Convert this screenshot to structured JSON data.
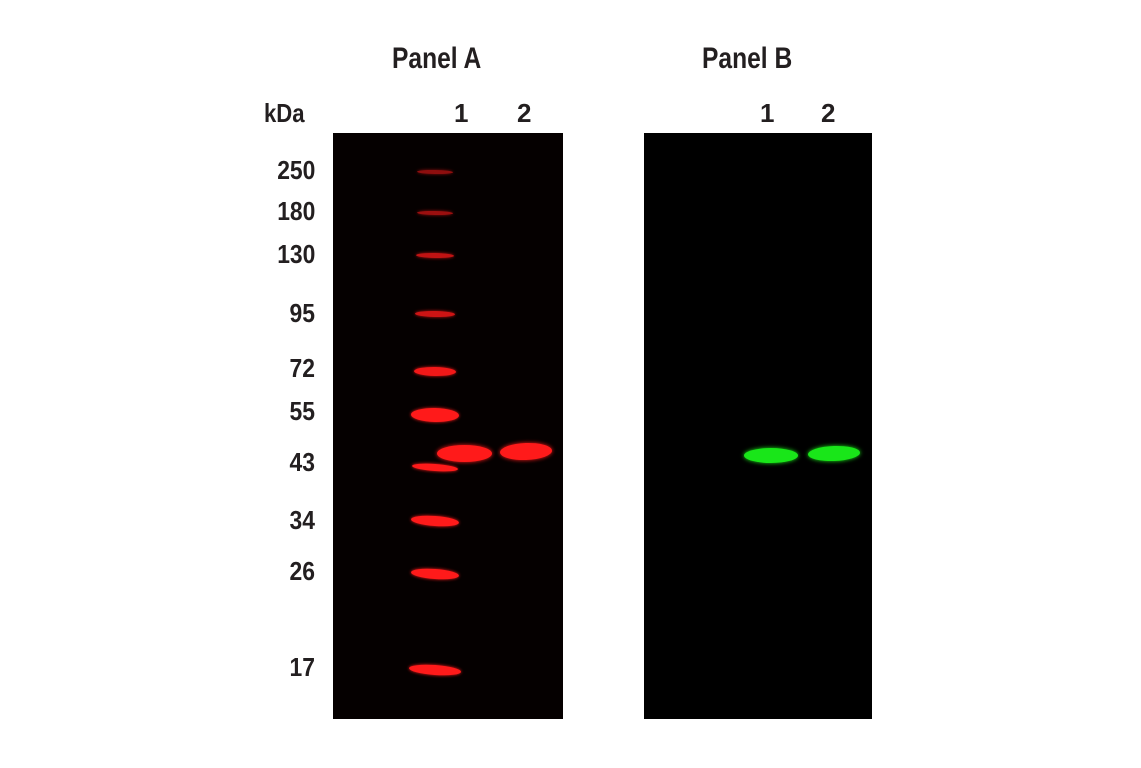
{
  "panels": [
    {
      "title": "Panel A",
      "lanes": [
        "1",
        "2"
      ],
      "band_color": "#ff1a1a"
    },
    {
      "title": "Panel B",
      "lanes": [
        "1",
        "2"
      ],
      "band_color": "#19e619"
    }
  ],
  "mw_unit": "kDa",
  "mw_markers": [
    "250",
    "180",
    "130",
    "95",
    "72",
    "55",
    "43",
    "34",
    "26",
    "17"
  ]
}
